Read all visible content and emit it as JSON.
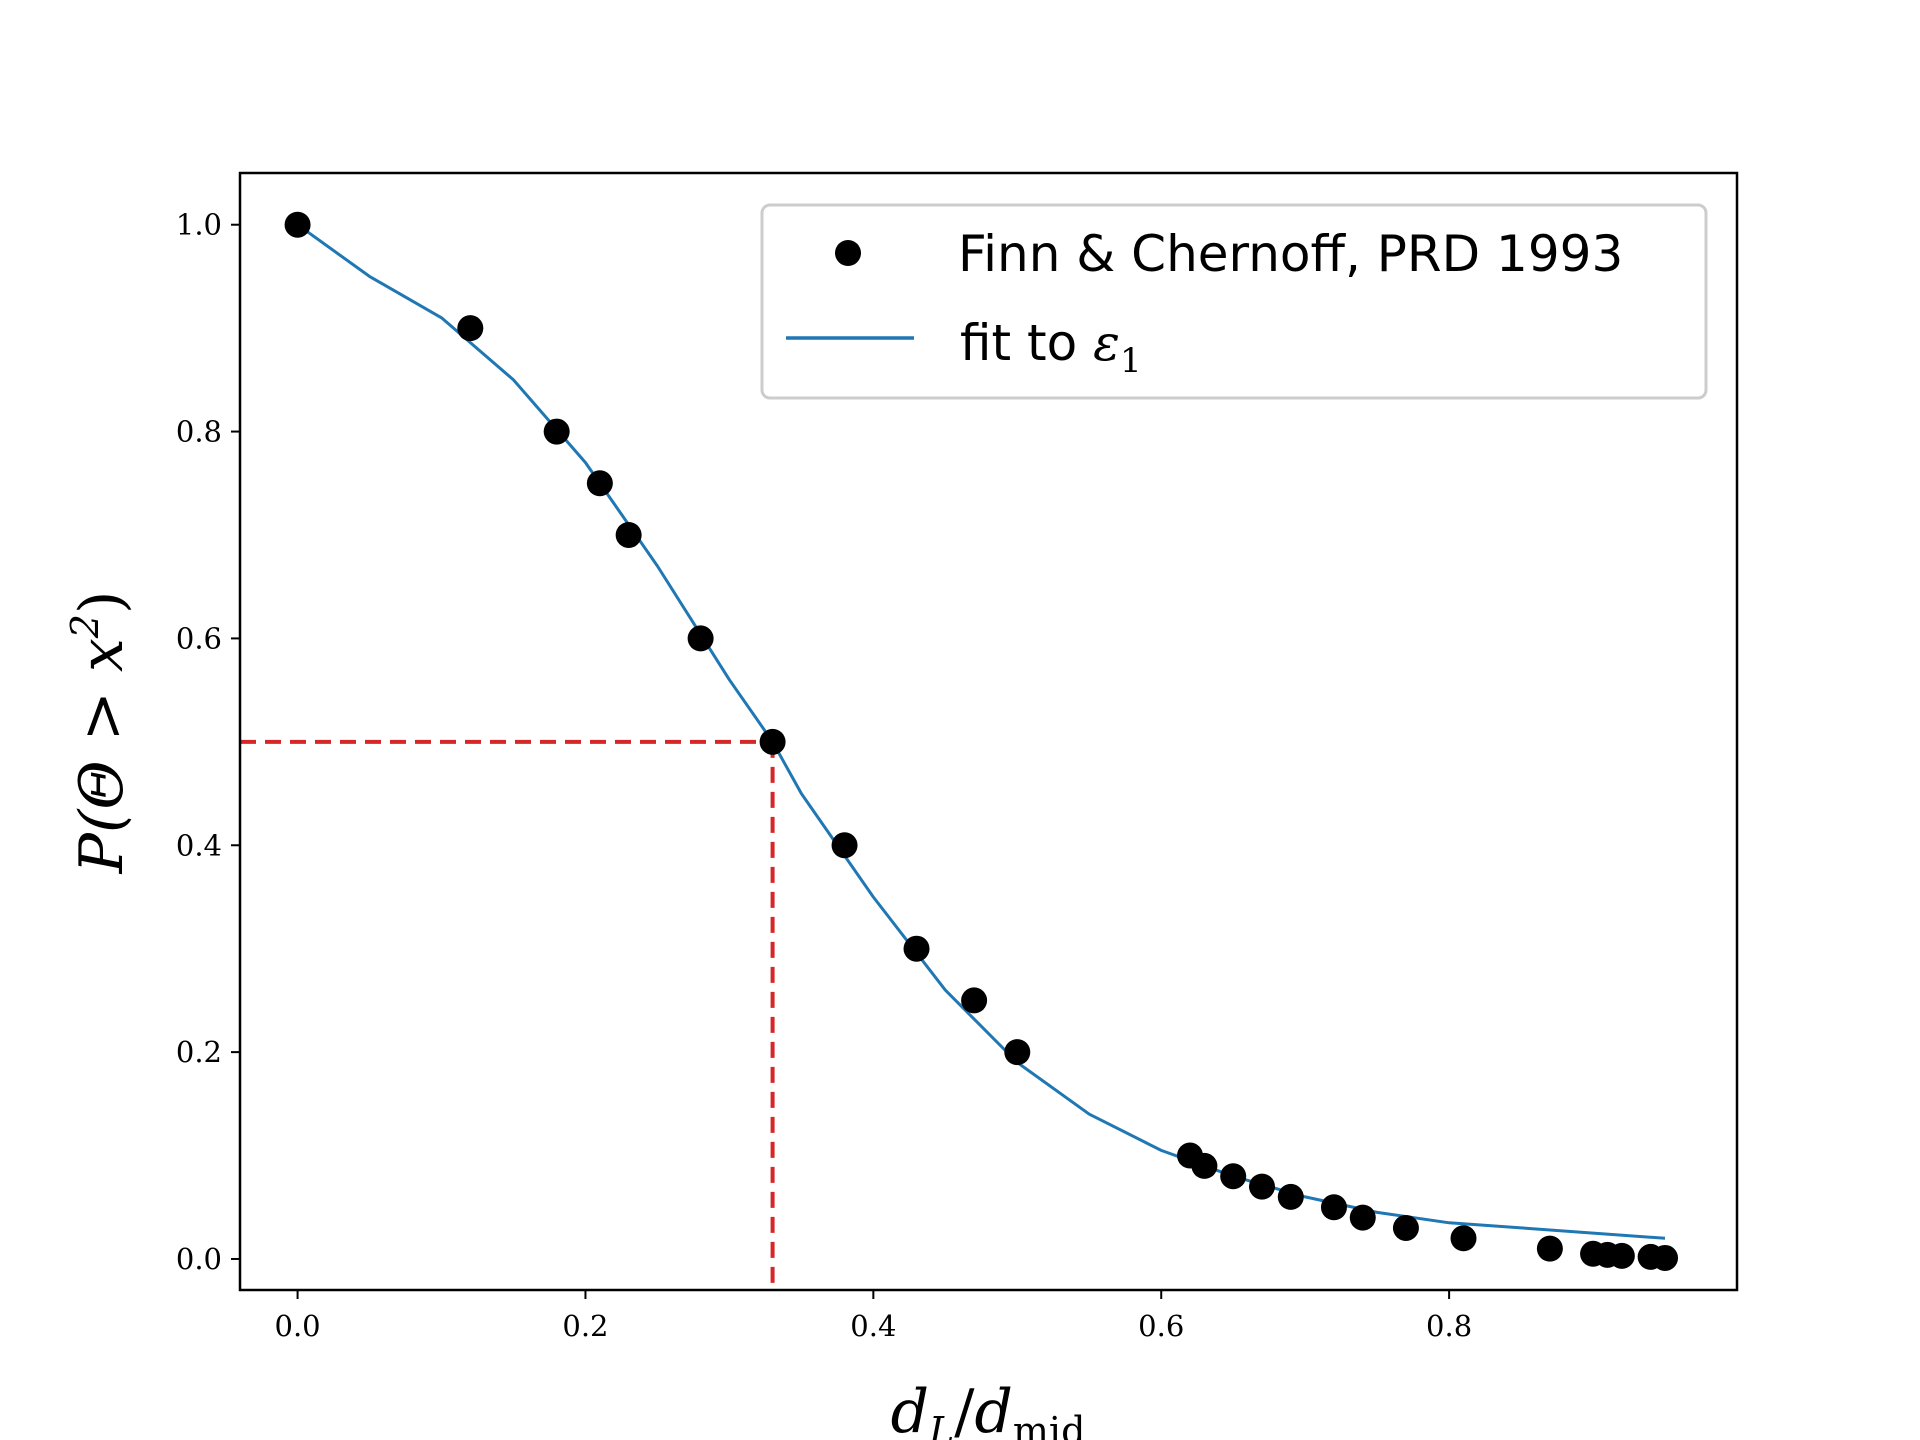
{
  "chart_data": {
    "type": "scatter",
    "xlabel": "d_L/d_mid",
    "ylabel": "P(Θ > x²)",
    "xlim": [
      -0.04,
      1.0
    ],
    "ylim": [
      -0.03,
      1.05
    ],
    "xticks": [
      "0.0",
      "0.2",
      "0.4",
      "0.6",
      "0.8"
    ],
    "yticks": [
      "0.0",
      "0.2",
      "0.4",
      "0.6",
      "0.8",
      "1.0"
    ],
    "grid": false,
    "legend_position": "top-right",
    "series": [
      {
        "name": "Finn & Chernoff, PRD 1993",
        "kind": "scatter",
        "color": "#000000",
        "x": [
          0.0,
          0.12,
          0.18,
          0.21,
          0.23,
          0.28,
          0.33,
          0.38,
          0.43,
          0.47,
          0.5,
          0.62,
          0.63,
          0.65,
          0.67,
          0.69,
          0.72,
          0.74,
          0.77,
          0.81,
          0.87,
          0.9,
          0.91,
          0.92,
          0.94,
          0.95
        ],
        "y": [
          1.0,
          0.9,
          0.8,
          0.75,
          0.7,
          0.6,
          0.5,
          0.4,
          0.3,
          0.25,
          0.2,
          0.1,
          0.09,
          0.08,
          0.07,
          0.06,
          0.05,
          0.04,
          0.03,
          0.02,
          0.01,
          0.005,
          0.004,
          0.003,
          0.002,
          0.001
        ]
      },
      {
        "name": "fit to ε₁",
        "kind": "line",
        "color": "#1f77b4",
        "x": [
          0.0,
          0.05,
          0.1,
          0.15,
          0.2,
          0.25,
          0.3,
          0.33,
          0.35,
          0.4,
          0.45,
          0.5,
          0.55,
          0.6,
          0.65,
          0.7,
          0.75,
          0.8,
          0.85,
          0.9,
          0.95
        ],
        "y": [
          1.0,
          0.95,
          0.91,
          0.85,
          0.77,
          0.67,
          0.56,
          0.5,
          0.45,
          0.35,
          0.26,
          0.19,
          0.14,
          0.105,
          0.08,
          0.06,
          0.045,
          0.035,
          0.03,
          0.025,
          0.02
        ]
      }
    ],
    "annotations": [
      {
        "kind": "reference-lines",
        "color": "#d62728",
        "style": "dashed",
        "x": 0.33,
        "y": 0.5
      }
    ]
  },
  "legend": {
    "items": [
      {
        "label": "Finn & Chernoff, PRD 1993",
        "marker": "dot"
      },
      {
        "label": "fit to ",
        "math": "ε",
        "subscript": "1",
        "marker": "line"
      }
    ]
  },
  "axes": {
    "xlabel": {
      "main": "d",
      "sub": "L",
      "slash": "/",
      "main2": "d",
      "sub2": "mid"
    },
    "ylabel": {
      "text": "P(Θ > x",
      "sup": "2",
      "close": ")"
    }
  }
}
